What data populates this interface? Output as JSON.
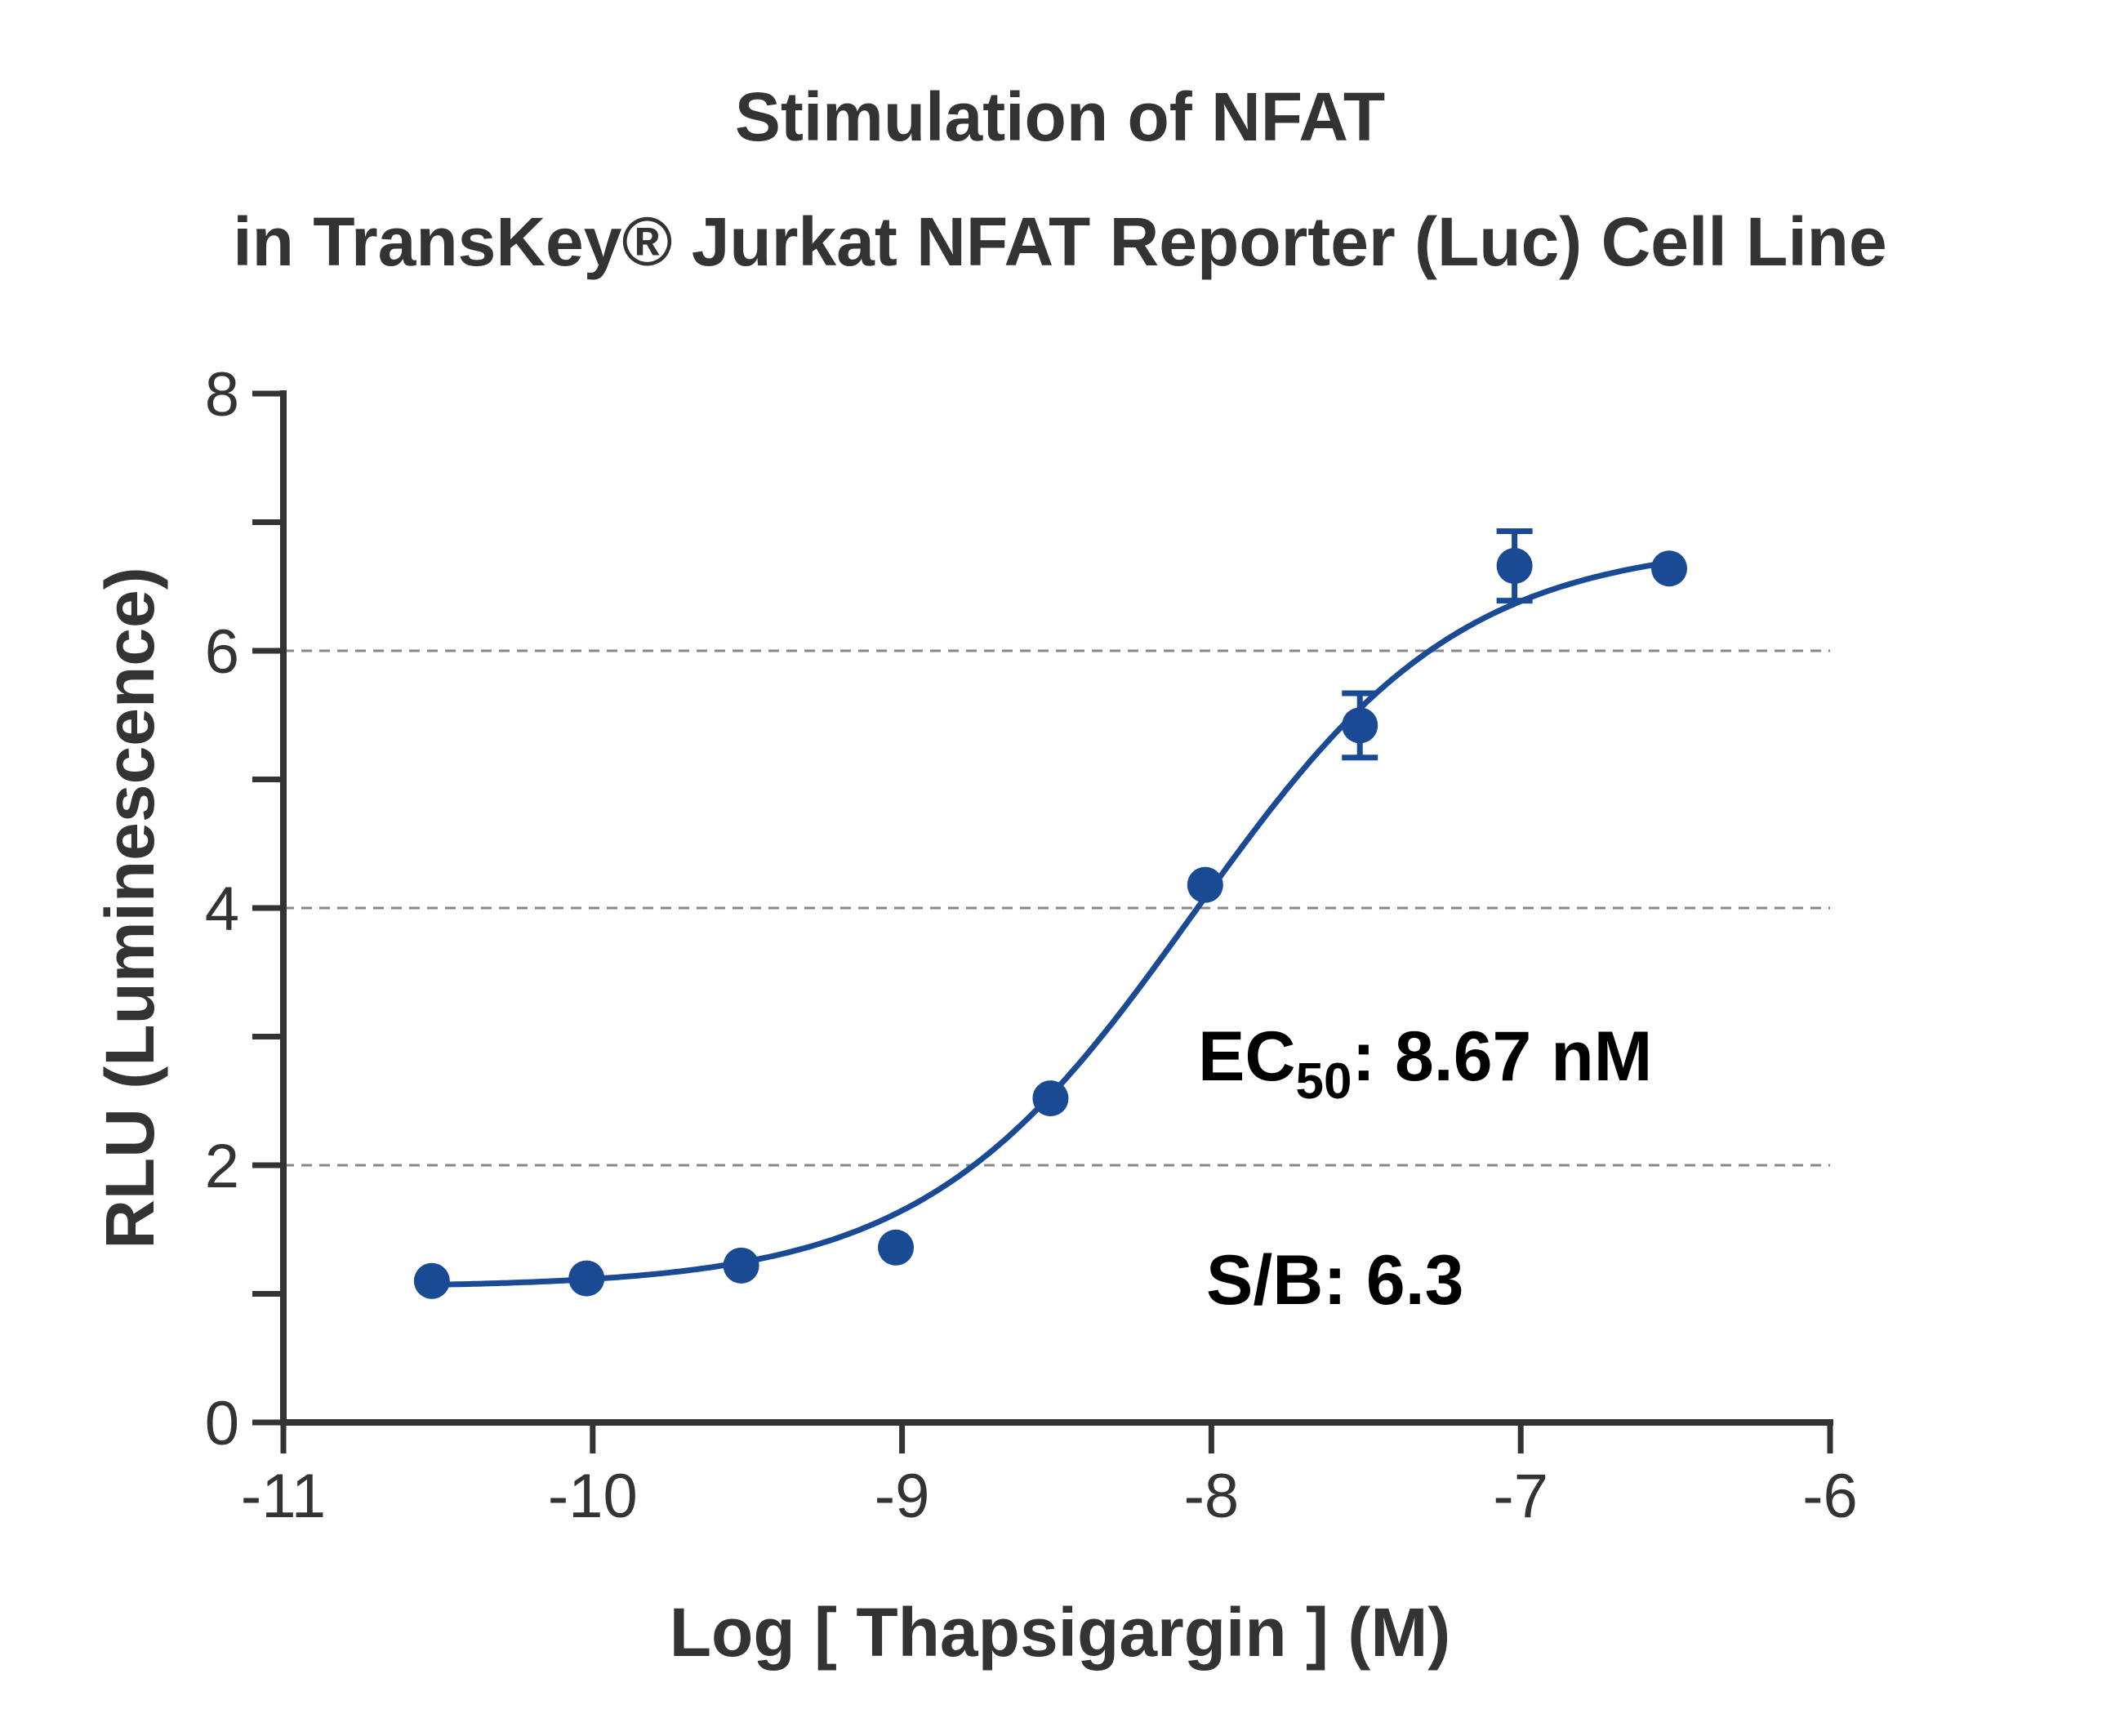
{
  "chart_data": {
    "type": "scatter",
    "title_line1": "Stimulation of  NFAT",
    "title_line2": "in TransKey® Jurkat NFAT Reporter (Luc) Cell Line",
    "xlabel": "Log [ Thapsigargin ]  (M)",
    "ylabel": "RLU (Luminescence)",
    "xlim": [
      -11,
      -6
    ],
    "ylim": [
      0,
      8
    ],
    "x_ticks": [
      "-11",
      "-10",
      "-9",
      "-8",
      "-7",
      "-6"
    ],
    "y_ticks": [
      "0",
      "2",
      "4",
      "6",
      "8"
    ],
    "grid_y": [
      2,
      4,
      6
    ],
    "series": [
      {
        "x": [
          -10.52,
          -10.02,
          -9.52,
          -9.02,
          -8.52,
          -8.02,
          -7.52,
          -7.02,
          -6.52
        ],
        "y": [
          1.1,
          1.12,
          1.22,
          1.36,
          2.52,
          4.18,
          5.42,
          6.66,
          6.64
        ],
        "err": [
          0,
          0,
          0,
          0,
          0,
          0,
          0.25,
          0.27,
          0
        ],
        "color": "#1a4a94"
      }
    ],
    "fit": {
      "bottom": 1.05,
      "top": 6.85,
      "logEC50": -8.06,
      "hill": 1.0
    },
    "annotations": {
      "ec50_prefix": "EC",
      "ec50_sub": "50",
      "ec50_value": ": 8.67 nM",
      "sb": "S/B: 6.3"
    }
  }
}
